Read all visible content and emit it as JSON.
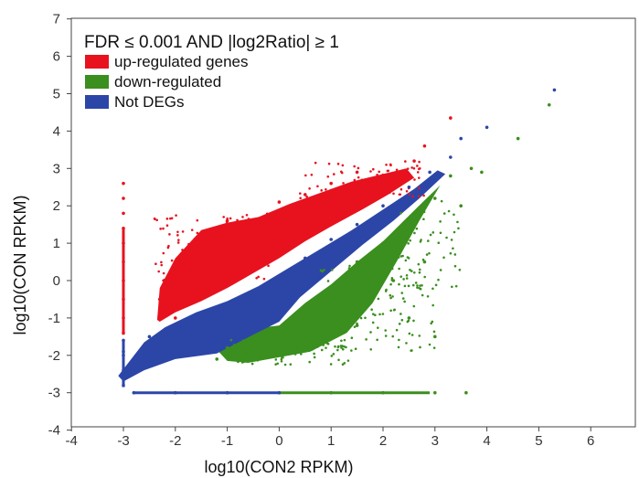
{
  "chart_data": {
    "type": "scatter",
    "title": "",
    "xlabel": "log10(CON2 RPKM)",
    "ylabel": "log10(CON RPKM)",
    "xlim": [
      -4,
      7
    ],
    "ylim": [
      -4,
      7
    ],
    "xticks": [
      -4,
      -3,
      -2,
      -1,
      0,
      1,
      2,
      3,
      4,
      5,
      6,
      7
    ],
    "yticks": [
      -4,
      -3,
      -2,
      -1,
      0,
      1,
      2,
      3,
      4,
      5,
      6,
      7
    ],
    "grid": false,
    "legend": {
      "placement": "top-left",
      "title": "FDR ≤ 0.001 AND |log2Ratio| ≥ 1"
    },
    "series": [
      {
        "name": "up-regulated genes",
        "color": "#e8121f",
        "points": [
          [
            -3,
            2.6
          ],
          [
            -3,
            2.2
          ],
          [
            -3,
            1.8
          ],
          [
            -3,
            1.4
          ],
          [
            -3,
            1.0
          ],
          [
            -3,
            0.5
          ],
          [
            -3,
            0.0
          ],
          [
            -3,
            -0.5
          ],
          [
            -3,
            -1.0
          ],
          [
            -3,
            -1.4
          ],
          [
            -2.3,
            -0.5
          ],
          [
            -2.0,
            0.5
          ],
          [
            -1.5,
            1.2
          ],
          [
            -1.0,
            1.6
          ],
          [
            -0.5,
            1.6
          ],
          [
            0.0,
            2.1
          ],
          [
            0.5,
            2.3
          ],
          [
            1.0,
            2.6
          ],
          [
            1.5,
            2.9
          ],
          [
            -2.0,
            -1.0
          ],
          [
            -1.0,
            0.2
          ],
          [
            0.0,
            0.8
          ],
          [
            1.0,
            1.5
          ],
          [
            2.0,
            2.5
          ],
          [
            2.6,
            3.2
          ],
          [
            3.3,
            4.35
          ],
          [
            2.8,
            3.6
          ],
          [
            -1.5,
            -0.2
          ],
          [
            -0.5,
            0.9
          ],
          [
            0.5,
            1.4
          ]
        ]
      },
      {
        "name": "down-regulated",
        "color": "#3a8f1e",
        "points": [
          [
            -1.0,
            -1.8
          ],
          [
            -0.5,
            -2.0
          ],
          [
            0.0,
            -1.5
          ],
          [
            0.5,
            -0.8
          ],
          [
            1.0,
            -0.4
          ],
          [
            1.5,
            0.5
          ],
          [
            2.0,
            1.0
          ],
          [
            2.5,
            1.5
          ],
          [
            3.0,
            2.2
          ],
          [
            3.3,
            2.8
          ],
          [
            3.7,
            3.0
          ],
          [
            3.9,
            2.9
          ],
          [
            4.6,
            3.8
          ],
          [
            5.2,
            4.7
          ],
          [
            2.5,
            -1.0
          ],
          [
            3.0,
            -1.5
          ],
          [
            1.0,
            -3.0
          ],
          [
            2.0,
            -3.0
          ],
          [
            3.0,
            -3.0
          ],
          [
            3.6,
            -3.0
          ],
          [
            1.5,
            -1.2
          ],
          [
            2.2,
            0.0
          ],
          [
            0.3,
            -1.9
          ],
          [
            -1.2,
            -2.1
          ],
          [
            2.8,
            0.5
          ],
          [
            3.5,
            2.0
          ]
        ]
      },
      {
        "name": "Not DEGs",
        "color": "#2c46a8",
        "points": [
          [
            -3,
            -1.6
          ],
          [
            -3,
            -2.0
          ],
          [
            -3,
            -2.4
          ],
          [
            -3,
            -2.8
          ],
          [
            -2.8,
            -3.0
          ],
          [
            -2.0,
            -3.0
          ],
          [
            -1.0,
            -3.0
          ],
          [
            0.0,
            -3.0
          ],
          [
            -3.0,
            -1.9
          ],
          [
            -2.5,
            -1.5
          ],
          [
            -2.0,
            -1.2
          ],
          [
            -1.5,
            -0.9
          ],
          [
            -1.0,
            -0.6
          ],
          [
            -0.5,
            -0.4
          ],
          [
            0.0,
            0.1
          ],
          [
            0.5,
            0.6
          ],
          [
            1.0,
            1.1
          ],
          [
            1.5,
            1.5
          ],
          [
            2.0,
            2.0
          ],
          [
            2.5,
            2.5
          ],
          [
            2.9,
            2.9
          ],
          [
            3.3,
            3.3
          ],
          [
            3.5,
            3.8
          ],
          [
            4.0,
            4.1
          ],
          [
            5.3,
            5.1
          ]
        ]
      }
    ]
  }
}
